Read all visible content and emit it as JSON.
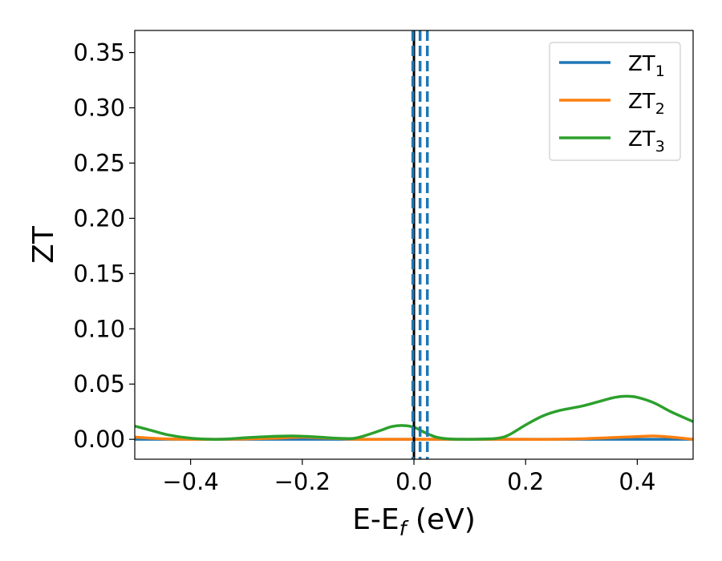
{
  "chart_data": {
    "type": "line",
    "title": "",
    "xlabel_main": "E-E",
    "xlabel_sub": "f",
    "xlabel_unit": " (eV)",
    "ylabel": "ZT",
    "xlim": [
      -0.5,
      0.5
    ],
    "ylim": [
      -0.018,
      0.37
    ],
    "xticks": [
      -0.4,
      -0.2,
      0.0,
      0.2,
      0.4
    ],
    "xtick_labels": [
      "−0.4",
      "−0.2",
      "0.0",
      "0.2",
      "0.4"
    ],
    "yticks": [
      0.0,
      0.05,
      0.1,
      0.15,
      0.2,
      0.25,
      0.3,
      0.35
    ],
    "ytick_labels": [
      "0.00",
      "0.05",
      "0.10",
      "0.15",
      "0.20",
      "0.25",
      "0.30",
      "0.35"
    ],
    "grid": false,
    "legend_position": "top-right",
    "series": [
      {
        "name": "ZT",
        "sub": "1",
        "color": "#1f77b4",
        "x": [
          -0.5,
          0.5
        ],
        "y": [
          0.0,
          0.0
        ]
      },
      {
        "name": "ZT",
        "sub": "2",
        "color": "#ff7f0e",
        "x": [
          -0.5,
          -0.45,
          -0.4,
          -0.35,
          -0.3,
          -0.25,
          -0.2,
          -0.15,
          -0.1,
          -0.05,
          0.0,
          0.05,
          0.1,
          0.15,
          0.2,
          0.25,
          0.3,
          0.35,
          0.4,
          0.43,
          0.46,
          0.5
        ],
        "y": [
          0.002,
          0.0005,
          0.0,
          0.0,
          0.0003,
          0.001,
          0.002,
          0.001,
          0.0,
          0.0,
          0.0,
          0.0,
          0.0,
          0.0,
          0.0,
          0.0,
          0.0005,
          0.0015,
          0.0025,
          0.003,
          0.002,
          0.0
        ]
      },
      {
        "name": "ZT",
        "sub": "3",
        "color": "#2ca02c",
        "x": [
          -0.5,
          -0.47,
          -0.44,
          -0.4,
          -0.36,
          -0.33,
          -0.3,
          -0.26,
          -0.22,
          -0.2,
          -0.17,
          -0.14,
          -0.11,
          -0.09,
          -0.06,
          -0.04,
          -0.02,
          0.0,
          0.02,
          0.04,
          0.06,
          0.09,
          0.12,
          0.15,
          0.17,
          0.2,
          0.23,
          0.26,
          0.3,
          0.33,
          0.36,
          0.38,
          0.4,
          0.43,
          0.46,
          0.5
        ],
        "y": [
          0.012,
          0.008,
          0.004,
          0.001,
          0.0,
          0.0005,
          0.0015,
          0.0025,
          0.003,
          0.0028,
          0.002,
          0.001,
          0.0008,
          0.003,
          0.008,
          0.0115,
          0.0125,
          0.011,
          0.006,
          0.002,
          0.0005,
          0.0,
          0.0002,
          0.001,
          0.004,
          0.013,
          0.021,
          0.026,
          0.03,
          0.034,
          0.038,
          0.039,
          0.038,
          0.033,
          0.025,
          0.016
        ]
      }
    ],
    "vlines": [
      {
        "x": 0.0,
        "color": "#000000",
        "style": "solid"
      },
      {
        "x": -0.002,
        "color": "#1f77b4",
        "style": "dashed"
      },
      {
        "x": 0.011,
        "color": "#1f77b4",
        "style": "dashed"
      },
      {
        "x": 0.024,
        "color": "#1f77b4",
        "style": "dashed"
      }
    ]
  }
}
